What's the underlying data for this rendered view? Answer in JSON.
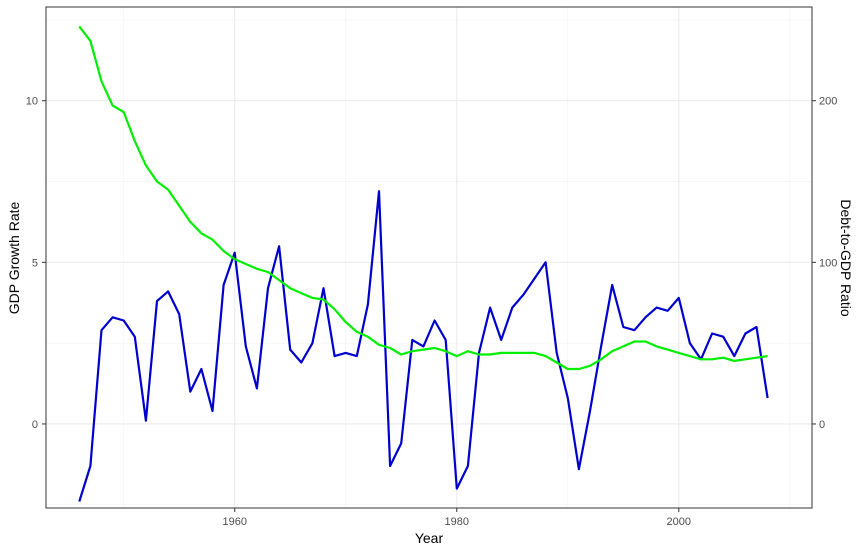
{
  "chart_data": {
    "type": "line",
    "title": "",
    "xlabel": "Year",
    "ylabel": "GDP Growth Rate",
    "y2label": "Debt-to-GDP Ratio",
    "xlim": [
      1943,
      2012
    ],
    "ylim": [
      -2.6,
      12.9
    ],
    "y2lim": [
      -52,
      258
    ],
    "x_ticks": [
      1960,
      1980,
      2000
    ],
    "y_ticks": [
      0,
      5,
      10
    ],
    "y2_ticks": [
      0,
      100,
      200
    ],
    "grid": true,
    "legend": "none",
    "series": [
      {
        "axis": "left",
        "color": "#0000CD",
        "x": [
          1946,
          1947,
          1948,
          1949,
          1950,
          1951,
          1952,
          1953,
          1954,
          1955,
          1956,
          1957,
          1958,
          1959,
          1960,
          1961,
          1962,
          1963,
          1964,
          1965,
          1966,
          1967,
          1968,
          1969,
          1970,
          1971,
          1972,
          1973,
          1974,
          1975,
          1976,
          1977,
          1978,
          1979,
          1980,
          1981,
          1982,
          1983,
          1984,
          1985,
          1986,
          1987,
          1988,
          1989,
          1990,
          1991,
          1992,
          1993,
          1994,
          1995,
          1996,
          1997,
          1998,
          1999,
          2000,
          2001,
          2002,
          2003,
          2004,
          2005,
          2006,
          2007,
          2008
        ],
        "y": [
          -2.4,
          -1.3,
          2.9,
          3.3,
          3.2,
          2.7,
          0.1,
          3.8,
          4.1,
          3.4,
          1.0,
          1.7,
          0.4,
          4.3,
          5.3,
          2.4,
          1.1,
          4.2,
          5.5,
          2.3,
          1.9,
          2.5,
          4.2,
          2.1,
          2.2,
          2.1,
          3.7,
          7.2,
          -1.3,
          -0.6,
          2.6,
          2.4,
          3.2,
          2.6,
          -2.0,
          -1.3,
          2.2,
          3.6,
          2.6,
          3.6,
          4.0,
          4.5,
          5.0,
          2.2,
          0.8,
          -1.4,
          0.4,
          2.4,
          4.3,
          3.0,
          2.9,
          3.3,
          3.6,
          3.5,
          3.9,
          2.5,
          2.0,
          2.8,
          2.7,
          2.1,
          2.8,
          3.0,
          0.8
        ]
      },
      {
        "axis": "right",
        "color": "#00EE00",
        "x": [
          1946,
          1947,
          1948,
          1949,
          1950,
          1951,
          1952,
          1953,
          1954,
          1955,
          1956,
          1957,
          1958,
          1959,
          1960,
          1961,
          1962,
          1963,
          1964,
          1965,
          1966,
          1967,
          1968,
          1969,
          1970,
          1971,
          1972,
          1973,
          1974,
          1975,
          1976,
          1977,
          1978,
          1979,
          1980,
          1981,
          1982,
          1983,
          1984,
          1985,
          1986,
          1987,
          1988,
          1989,
          1990,
          1991,
          1992,
          1993,
          1994,
          1995,
          1996,
          1997,
          1998,
          1999,
          2000,
          2001,
          2002,
          2003,
          2004,
          2005,
          2006,
          2007,
          2008
        ],
        "y": [
          246,
          237,
          212,
          197,
          193,
          175,
          160,
          150,
          145,
          135,
          125,
          118,
          114,
          107,
          102,
          99,
          96,
          94,
          89,
          84,
          81,
          78,
          77,
          71,
          63,
          57,
          54,
          49,
          47,
          43,
          45,
          46,
          47,
          45,
          42,
          45,
          43,
          43,
          44,
          44,
          44,
          44,
          42,
          38,
          34,
          34,
          36,
          40,
          45,
          48,
          51,
          51,
          48,
          46,
          44,
          42,
          40,
          40,
          41,
          39,
          40,
          41,
          42
        ]
      }
    ]
  }
}
